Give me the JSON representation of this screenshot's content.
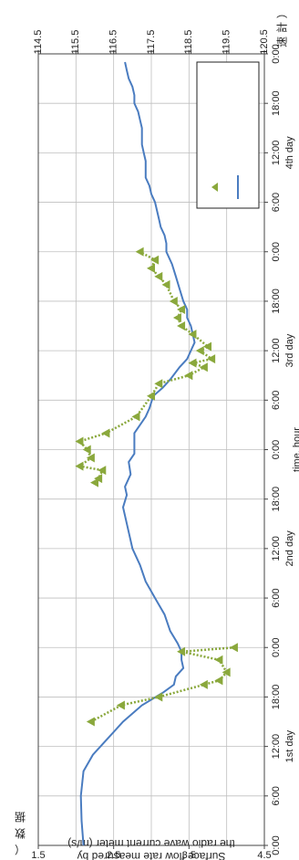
{
  "chart_data": {
    "type": "line",
    "rotation": "rotated 90 degrees clockwise on the page",
    "xlabel": "time, hour",
    "x_tick_labels": [
      "0:00",
      "6:00",
      "12:00",
      "18:00",
      "0:00",
      "6:00",
      "12:00",
      "18:00",
      "0:00",
      "6:00",
      "12:00",
      "18:00",
      "0:00",
      "6:00",
      "12:00",
      "18:00",
      "0:00"
    ],
    "x_range_hours": [
      0,
      96
    ],
    "day_labels": [
      {
        "text": "1st day",
        "hour": 12
      },
      {
        "text": "2nd day",
        "hour": 36
      },
      {
        "text": "3rd day",
        "hour": 60
      },
      {
        "text": "4th day",
        "hour": 84
      }
    ],
    "y_left": {
      "label_line1": "Surface flow rate measured by",
      "label_line2": "the radio wave current meter  (m/s)",
      "side_chars": [
        "（",
        "数",
        "据"
      ],
      "range": [
        1.5,
        4.5
      ],
      "ticks": [
        "1.5",
        "2.5",
        "3.5",
        "4.5"
      ]
    },
    "y_right": {
      "label": "速 計 ）",
      "range": [
        114.5,
        120.5
      ],
      "ticks": [
        "114.5",
        "115.5",
        "116.5",
        "117.5",
        "118.5",
        "119.5",
        "120.5"
      ]
    },
    "grid": true,
    "legend": {
      "placement": "top-right (page)",
      "entries": [
        "",
        ""
      ]
    },
    "colors": {
      "line": "#4a7cc0",
      "markers": "#8aa83c",
      "grid": "#bfbfbf",
      "axis": "#444444"
    },
    "series": [
      {
        "axis": "right",
        "style": "solid line",
        "points": [
          [
            0,
            115.7
          ],
          [
            3,
            115.65
          ],
          [
            6,
            115.63
          ],
          [
            9,
            115.7
          ],
          [
            11,
            115.95
          ],
          [
            13,
            116.35
          ],
          [
            15,
            116.75
          ],
          [
            17,
            117.25
          ],
          [
            18.5,
            117.8
          ],
          [
            19.5,
            118.1
          ],
          [
            20.5,
            118.15
          ],
          [
            21.5,
            118.35
          ],
          [
            22.5,
            118.3
          ],
          [
            23.5,
            118.3
          ],
          [
            24.5,
            118.2
          ],
          [
            26,
            118.0
          ],
          [
            28,
            117.85
          ],
          [
            30,
            117.6
          ],
          [
            32,
            117.35
          ],
          [
            34,
            117.2
          ],
          [
            36,
            117.0
          ],
          [
            38,
            116.9
          ],
          [
            40,
            116.8
          ],
          [
            41,
            116.75
          ],
          [
            42.5,
            116.85
          ],
          [
            43.5,
            116.8
          ],
          [
            45,
            116.95
          ],
          [
            46.5,
            116.9
          ],
          [
            47.5,
            117.05
          ],
          [
            49,
            117.05
          ],
          [
            50,
            117.05
          ],
          [
            51,
            117.2
          ],
          [
            52,
            117.35
          ],
          [
            53,
            117.45
          ],
          [
            54.5,
            117.55
          ],
          [
            55.5,
            117.8
          ],
          [
            56.5,
            118.0
          ],
          [
            58,
            118.25
          ],
          [
            59,
            118.45
          ],
          [
            60,
            118.55
          ],
          [
            61,
            118.65
          ],
          [
            62,
            118.6
          ],
          [
            63,
            118.55
          ],
          [
            64,
            118.45
          ],
          [
            65,
            118.45
          ],
          [
            66,
            118.35
          ],
          [
            67.5,
            118.25
          ],
          [
            69,
            118.15
          ],
          [
            70.5,
            118.05
          ],
          [
            72,
            117.9
          ],
          [
            73,
            117.9
          ],
          [
            74,
            117.85
          ],
          [
            75,
            117.75
          ],
          [
            76,
            117.7
          ],
          [
            77,
            117.65
          ],
          [
            78,
            117.6
          ],
          [
            79,
            117.5
          ],
          [
            80,
            117.45
          ],
          [
            81,
            117.35
          ],
          [
            82,
            117.35
          ],
          [
            83,
            117.35
          ],
          [
            84,
            117.3
          ],
          [
            85,
            117.25
          ],
          [
            86,
            117.25
          ],
          [
            87,
            117.25
          ],
          [
            88,
            117.2
          ],
          [
            89,
            117.15
          ],
          [
            90,
            117.05
          ],
          [
            91,
            117.05
          ],
          [
            92,
            117.0
          ],
          [
            93,
            116.9
          ],
          [
            94,
            116.85
          ],
          [
            95,
            116.8
          ]
        ]
      },
      {
        "axis": "left",
        "style": "triangle markers with dotted connector",
        "points": [
          [
            15,
            2.2
          ],
          [
            17,
            2.6
          ],
          [
            18,
            3.1
          ],
          [
            19.5,
            3.7
          ],
          [
            20,
            3.9
          ],
          [
            21,
            4.0
          ],
          [
            22.5,
            3.9
          ],
          [
            23.5,
            3.4
          ],
          [
            24,
            4.1
          ],
          [
            44,
            2.25
          ],
          [
            44.5,
            2.3
          ],
          [
            45.5,
            2.35
          ],
          [
            46,
            2.05
          ],
          [
            47,
            2.2
          ],
          [
            48,
            2.15
          ],
          [
            49,
            2.05
          ],
          [
            50,
            2.4
          ],
          [
            52,
            2.8
          ],
          [
            54.5,
            3.0
          ],
          [
            56,
            3.1
          ],
          [
            57,
            3.5
          ],
          [
            58,
            3.7
          ],
          [
            58.5,
            3.55
          ],
          [
            59,
            3.8
          ],
          [
            60,
            3.65
          ],
          [
            60.5,
            3.75
          ],
          [
            62,
            3.55
          ],
          [
            63,
            3.4
          ],
          [
            64,
            3.35
          ],
          [
            65,
            3.4
          ],
          [
            66,
            3.3
          ],
          [
            68,
            3.2
          ],
          [
            69,
            3.1
          ],
          [
            70,
            3.0
          ],
          [
            71,
            3.05
          ],
          [
            72,
            2.85
          ]
        ]
      }
    ]
  }
}
